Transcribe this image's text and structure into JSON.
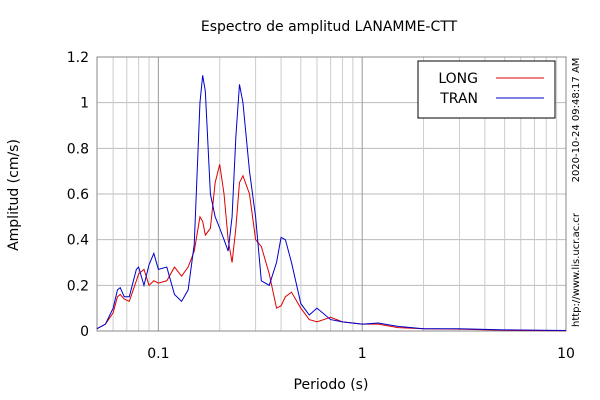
{
  "chart_data": {
    "type": "line",
    "title": "Espectro de amplitud LANAMME-CTT",
    "x_label": "Periodo (s)",
    "y_label": "Amplitud (cm/s)",
    "timestamp": "2020-10-24 09:48:17 AM",
    "source": "http://www.lis.ucr.ac.cr",
    "log_x": true,
    "grid": true,
    "legend_position": "upper-right",
    "xlim": [
      0.05,
      10
    ],
    "xticks": [
      0.1,
      1,
      10
    ],
    "xminorticks": [
      0.06,
      0.07,
      0.08,
      0.09,
      0.2,
      0.3,
      0.4,
      0.5,
      0.6,
      0.7,
      0.8,
      0.9,
      2,
      3,
      4,
      5,
      6,
      7,
      8,
      9
    ],
    "ylim": [
      0,
      1.2
    ],
    "yticks": [
      0,
      0.2,
      0.4,
      0.6,
      0.8,
      1,
      1.2
    ],
    "x": [
      0.05,
      0.055,
      0.06,
      0.063,
      0.065,
      0.068,
      0.072,
      0.078,
      0.08,
      0.085,
      0.09,
      0.095,
      0.1,
      0.11,
      0.12,
      0.13,
      0.14,
      0.15,
      0.16,
      0.165,
      0.17,
      0.18,
      0.19,
      0.2,
      0.21,
      0.22,
      0.23,
      0.24,
      0.25,
      0.26,
      0.28,
      0.3,
      0.32,
      0.35,
      0.38,
      0.4,
      0.42,
      0.45,
      0.5,
      0.55,
      0.6,
      0.7,
      0.8,
      1,
      1.2,
      1.5,
      2,
      3,
      5,
      10
    ],
    "series": [
      {
        "name": "LONG",
        "color": "#dd0000",
        "values": [
          0.01,
          0.03,
          0.08,
          0.15,
          0.16,
          0.14,
          0.13,
          0.22,
          0.25,
          0.27,
          0.2,
          0.22,
          0.21,
          0.22,
          0.28,
          0.24,
          0.28,
          0.35,
          0.5,
          0.48,
          0.42,
          0.45,
          0.65,
          0.73,
          0.6,
          0.4,
          0.3,
          0.45,
          0.65,
          0.68,
          0.6,
          0.4,
          0.37,
          0.25,
          0.1,
          0.11,
          0.15,
          0.17,
          0.1,
          0.05,
          0.04,
          0.06,
          0.04,
          0.03,
          0.03,
          0.015,
          0.01,
          0.008,
          0.003,
          0.001
        ]
      },
      {
        "name": "TRAN",
        "color": "#0000cc",
        "values": [
          0.01,
          0.03,
          0.1,
          0.18,
          0.19,
          0.15,
          0.15,
          0.27,
          0.28,
          0.2,
          0.29,
          0.34,
          0.27,
          0.28,
          0.16,
          0.13,
          0.18,
          0.38,
          1.0,
          1.12,
          1.05,
          0.6,
          0.5,
          0.45,
          0.4,
          0.35,
          0.5,
          0.85,
          1.08,
          1.0,
          0.7,
          0.5,
          0.22,
          0.2,
          0.3,
          0.41,
          0.4,
          0.3,
          0.12,
          0.07,
          0.1,
          0.05,
          0.04,
          0.03,
          0.035,
          0.02,
          0.01,
          0.01,
          0.005,
          0.002
        ]
      }
    ]
  }
}
